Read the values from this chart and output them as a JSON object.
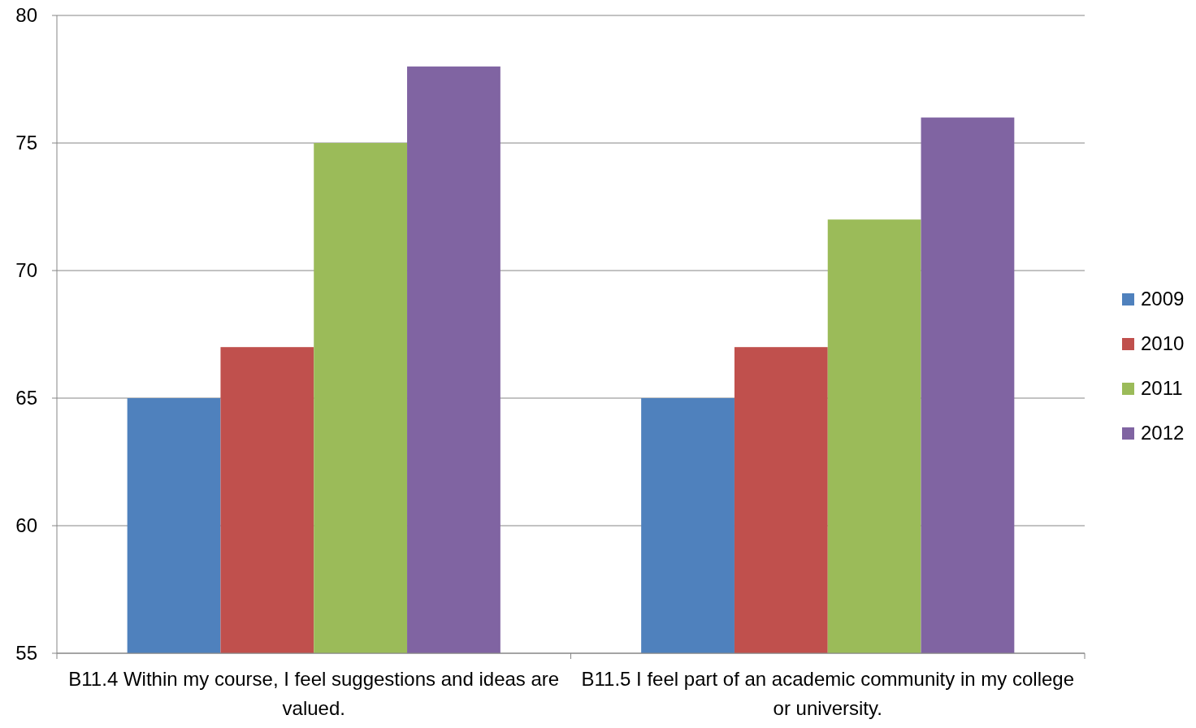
{
  "chart_data": {
    "type": "bar",
    "categories": [
      "B11.4 Within my course, I feel suggestions and ideas are valued.",
      "B11.5 I feel part of an academic community in my college or university."
    ],
    "series": [
      {
        "name": "2009",
        "color": "#4f81bd",
        "values": [
          65,
          65
        ]
      },
      {
        "name": "2010",
        "color": "#c0504d",
        "values": [
          67,
          67
        ]
      },
      {
        "name": "2011",
        "color": "#9bbb59",
        "values": [
          75,
          72
        ]
      },
      {
        "name": "2012",
        "color": "#8064a2",
        "values": [
          78,
          76
        ]
      }
    ],
    "ylim": [
      55,
      80
    ],
    "yticks": [
      55,
      60,
      65,
      70,
      75,
      80
    ],
    "grid": "y",
    "legend": "right"
  }
}
